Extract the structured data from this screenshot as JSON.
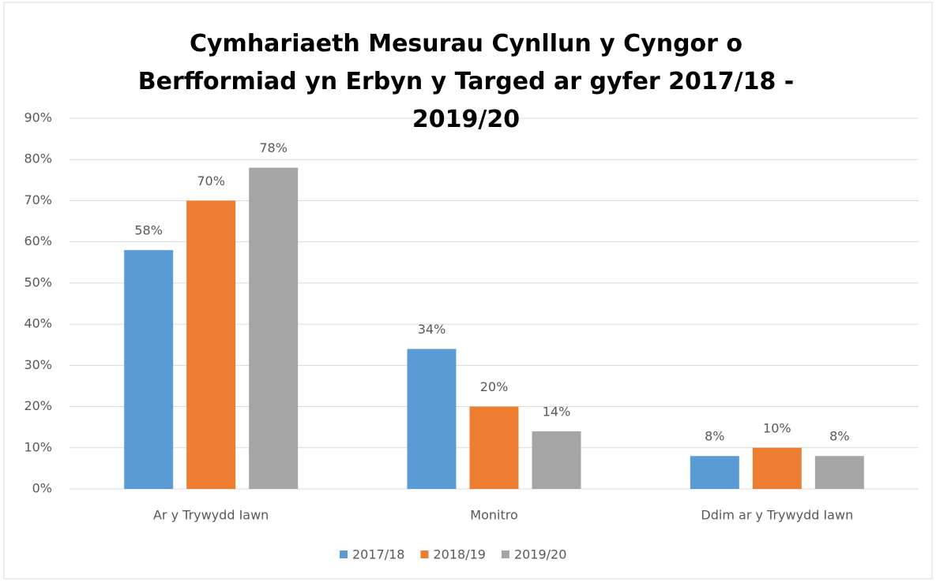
{
  "chart_data": {
    "type": "bar",
    "title": "Cymhariaeth Mesurau Cynllun y Cyngor o Berfformiad yn Erbyn y Targed ar gyfer 2017/18 - 2019/20",
    "categories": [
      "Ar y Trywydd Iawn",
      "Monitro",
      "Ddim ar y Trywydd Iawn"
    ],
    "series": [
      {
        "name": "2017/18",
        "color": "#5b9bd5",
        "values": [
          58,
          34,
          8
        ],
        "value_labels": [
          "58%",
          "34%",
          "8%"
        ]
      },
      {
        "name": "2018/19",
        "color": "#ed7d31",
        "values": [
          70,
          20,
          10
        ],
        "value_labels": [
          "70%",
          "20%",
          "10%"
        ]
      },
      {
        "name": "2019/20",
        "color": "#a5a5a5",
        "values": [
          78,
          14,
          8
        ],
        "value_labels": [
          "78%",
          "14%",
          "8%"
        ]
      }
    ],
    "ylim": [
      0,
      90
    ],
    "yticks": [
      {
        "value": 0,
        "label": "0%"
      },
      {
        "value": 10,
        "label": "10%"
      },
      {
        "value": 20,
        "label": "20%"
      },
      {
        "value": 30,
        "label": "30%"
      },
      {
        "value": 40,
        "label": "40%"
      },
      {
        "value": 50,
        "label": "50%"
      },
      {
        "value": 60,
        "label": "60%"
      },
      {
        "value": 70,
        "label": "70%"
      },
      {
        "value": 80,
        "label": "80%"
      },
      {
        "value": 90,
        "label": "90%"
      }
    ],
    "grid": true,
    "legend": "bottom"
  }
}
